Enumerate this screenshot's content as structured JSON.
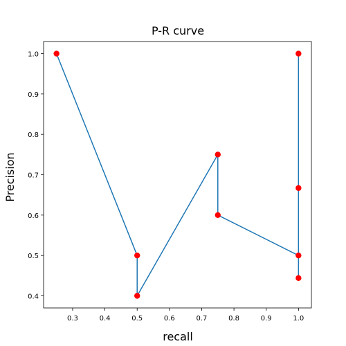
{
  "chart_data": {
    "type": "line",
    "title": "P-R curve",
    "xlabel": "recall",
    "ylabel": "Precision",
    "xlim": [
      0.21,
      1.04
    ],
    "ylim": [
      0.37,
      1.03
    ],
    "xticks": [
      0.3,
      0.4,
      0.5,
      0.6,
      0.7,
      0.8,
      0.9,
      1.0
    ],
    "yticks": [
      0.4,
      0.5,
      0.6,
      0.7,
      0.8,
      0.9,
      1.0
    ],
    "xtick_labels": [
      "0.3",
      "0.4",
      "0.5",
      "0.6",
      "0.7",
      "0.8",
      "0.9",
      "1.0"
    ],
    "ytick_labels": [
      "0.4",
      "0.5",
      "0.6",
      "0.7",
      "0.8",
      "0.9",
      "1.0"
    ],
    "grid": false,
    "series": [
      {
        "line_color": "#1f77b4",
        "marker_color": "#ff0000",
        "x": [
          0.25,
          0.5,
          0.5,
          0.75,
          0.75,
          1.0,
          1.0,
          1.0,
          1.0
        ],
        "y": [
          1.0,
          0.5,
          0.4,
          0.75,
          0.6,
          0.5,
          0.444,
          0.667,
          1.0
        ]
      }
    ]
  }
}
